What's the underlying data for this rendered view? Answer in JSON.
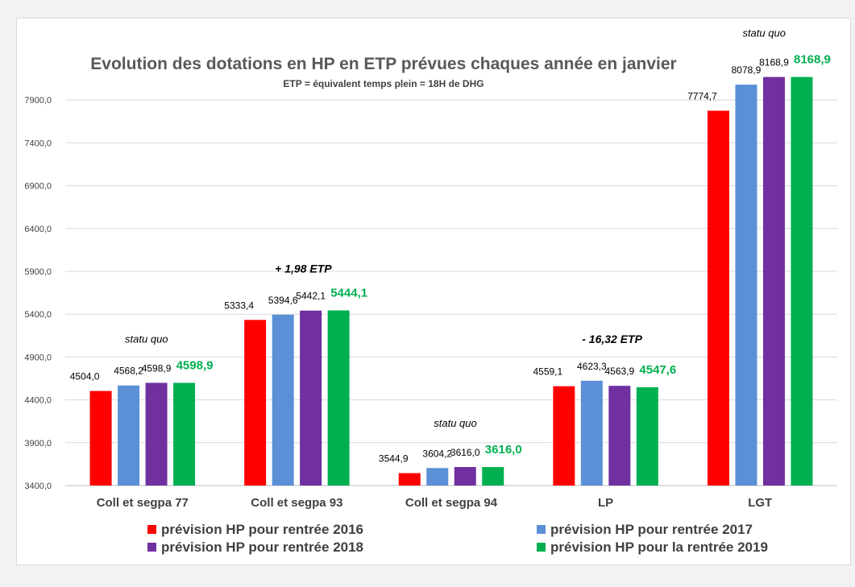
{
  "chart_data": {
    "type": "bar",
    "title": "Evolution des dotations en HP en ETP prévues chaques année en janvier",
    "subtitle": "ETP = équivalent temps plein = 18H de DHG",
    "categories": [
      "Coll et segpa 77",
      "Coll et segpa 93",
      "Coll et segpa 94",
      "LP",
      "LGT"
    ],
    "ylim": [
      3400,
      8400
    ],
    "yticks": [
      3400,
      3900,
      4400,
      4900,
      5400,
      5900,
      6400,
      6900,
      7400,
      7900
    ],
    "ytick_labels": [
      "3400,0",
      "3900,0",
      "4400,0",
      "4900,0",
      "5400,0",
      "5900,0",
      "6400,0",
      "6900,0",
      "7400,0",
      "7900,0"
    ],
    "grid": true,
    "legend_position": "bottom",
    "series": [
      {
        "name": "prévision HP  pour rentrée 2016",
        "color": "#ff0000",
        "values": [
          4504.0,
          5333.4,
          3544.9,
          4559.1,
          7774.7
        ],
        "labels": [
          "4504,0",
          "5333,4",
          "3544,9",
          "4559,1",
          "7774,7"
        ]
      },
      {
        "name": "prévision HP  pour rentrée 2017",
        "color": "#5b8fd6",
        "values": [
          4568.2,
          5394.6,
          3604.2,
          4623.3,
          8078.9
        ],
        "labels": [
          "4568,2",
          "5394,6",
          "3604,2",
          "4623,3",
          "8078,9"
        ]
      },
      {
        "name": "prévision HP  pour rentrée 2018",
        "color": "#7030a0",
        "values": [
          4598.9,
          5442.1,
          3616.0,
          4563.9,
          8168.9
        ],
        "labels": [
          "4598,9",
          "5442,1",
          "3616,0",
          "4563,9",
          "8168,9"
        ]
      },
      {
        "name": "prévision HP pour la rentrée 2019",
        "color": "#00b050",
        "values": [
          4598.9,
          5444.1,
          3616.0,
          4547.6,
          8168.9
        ],
        "labels": [
          "4598,9",
          "5444,1",
          "3616,0",
          "4547,6",
          "8168,9"
        ]
      }
    ],
    "annotations": [
      {
        "category": "Coll et segpa 77",
        "text": "statu quo"
      },
      {
        "category": "Coll et segpa 93",
        "text": "+ 1,98 ETP"
      },
      {
        "category": "Coll et segpa 94",
        "text": "statu quo"
      },
      {
        "category": "LP",
        "text": "- 16,32 ETP"
      },
      {
        "category": "LGT",
        "text": "statu quo"
      }
    ]
  }
}
